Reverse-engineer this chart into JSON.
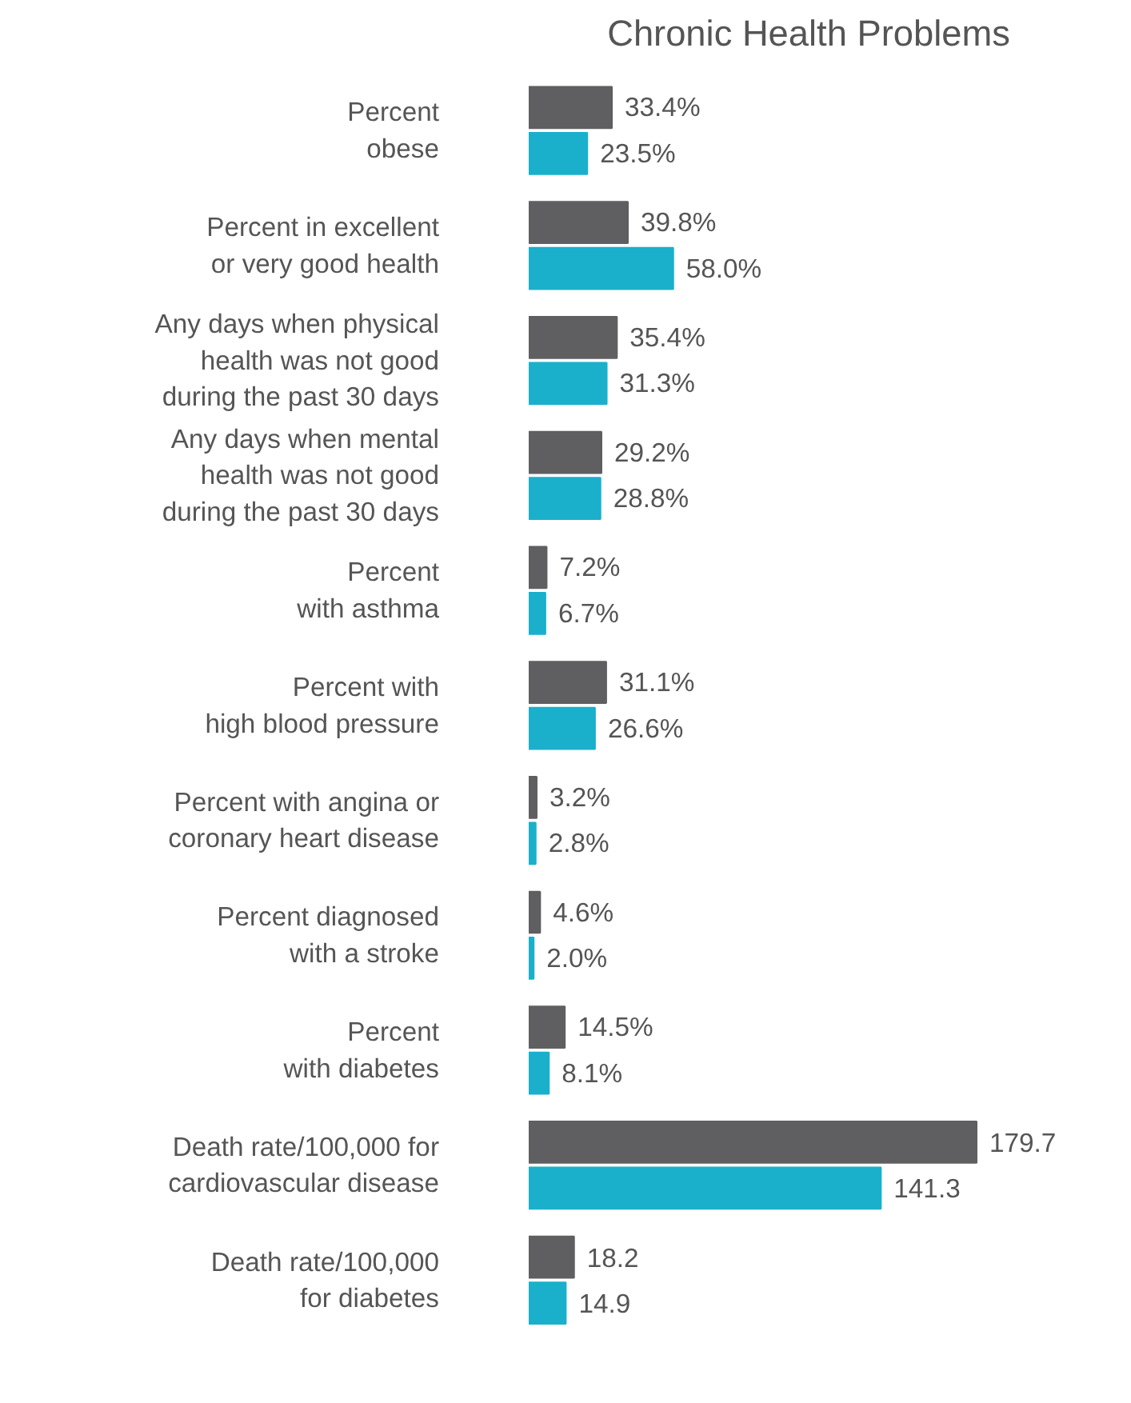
{
  "chart_data": {
    "type": "bar",
    "orientation": "horizontal",
    "title": "Chronic Health Problems",
    "categories": [
      "Percent\nobese",
      "Percent in excellent\nor very good health",
      "Any days when physical\nhealth was not good\nduring the past 30 days",
      "Any days when mental\nhealth was not good\nduring the past 30 days",
      "Percent\nwith asthma",
      "Percent with\nhigh blood pressure",
      "Percent with angina or\ncoronary heart disease",
      "Percent diagnosed\nwith a stroke",
      "Percent\nwith diabetes",
      "Death rate/100,000 for\ncardiovascular disease",
      "Death rate/100,000\nfor diabetes"
    ],
    "series": [
      {
        "color": "#5f5f62",
        "values": [
          33.4,
          39.8,
          35.4,
          29.2,
          7.2,
          31.1,
          3.2,
          4.6,
          14.5,
          179.7,
          18.2
        ],
        "value_labels": [
          "33.4%",
          "39.8%",
          "35.4%",
          "29.2%",
          "7.2%",
          "31.1%",
          "3.2%",
          "4.6%",
          "14.5%",
          "179.7",
          "18.2"
        ]
      },
      {
        "color": "#1ab0cc",
        "values": [
          23.5,
          58.0,
          31.3,
          28.8,
          6.7,
          26.6,
          2.8,
          2.0,
          8.1,
          141.3,
          14.9
        ],
        "value_labels": [
          "23.5%",
          "58.0%",
          "31.3%",
          "28.8%",
          "6.7%",
          "26.6%",
          "2.8%",
          "2.0%",
          "8.1%",
          "141.3",
          "14.9"
        ]
      }
    ]
  }
}
